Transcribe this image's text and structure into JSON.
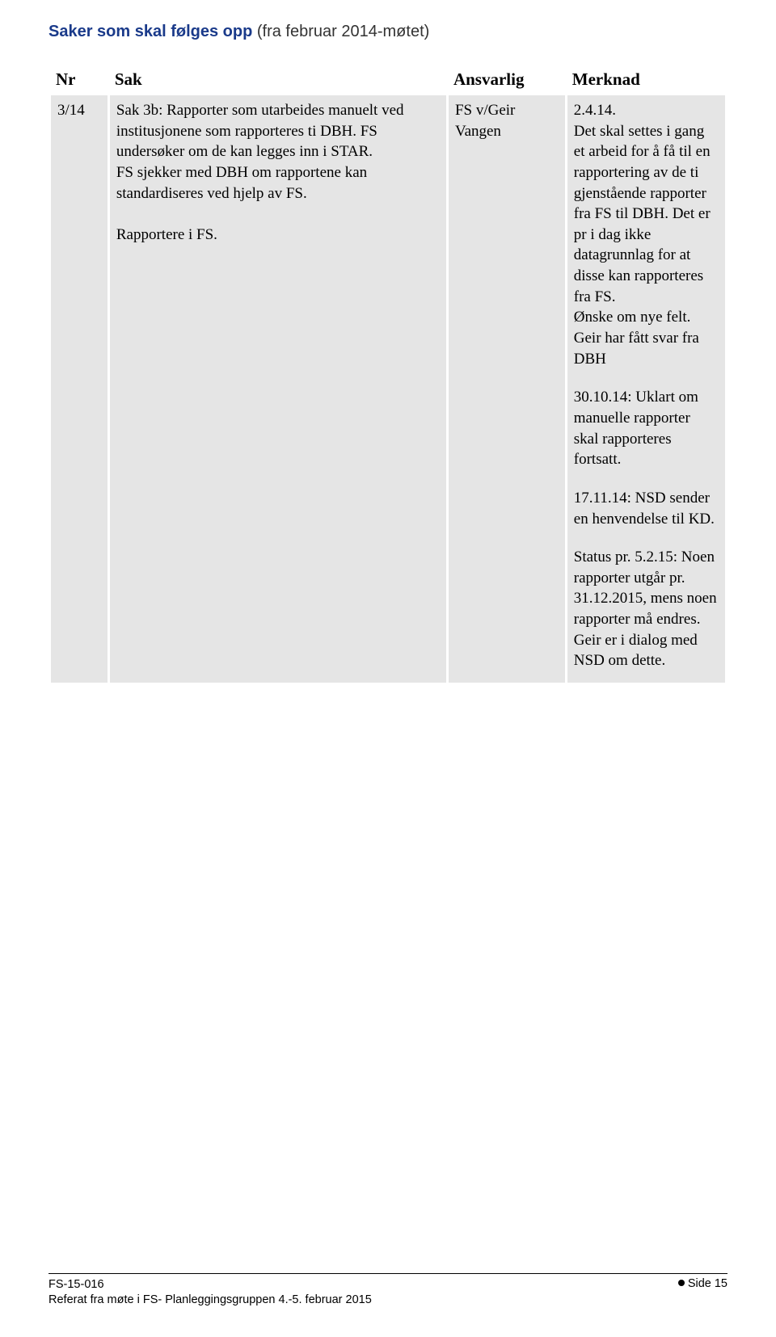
{
  "heading": {
    "main": "Saker som skal følges opp ",
    "sub": "(fra februar 2014-møtet)"
  },
  "table": {
    "headers": {
      "nr": "Nr",
      "sak": "Sak",
      "ansvarlig": "Ansvarlig",
      "merknad": "Merknad"
    },
    "row": {
      "nr": "3/14",
      "sak": "Sak 3b: Rapporter som utarbeides manuelt ved institusjonene som rapporteres ti DBH. FS undersøker om de kan legges inn i STAR.\nFS sjekker med DBH om rapportene kan standardiseres ved hjelp av FS.\n\nRapportere i FS.",
      "ansvarlig": "FS v/Geir Vangen",
      "merknad": [
        "2.4.14.\nDet skal settes i gang et arbeid for å få til en rapportering av de ti gjenstående rapporter fra FS til DBH. Det er pr i dag ikke datagrunnlag for at disse kan rapporteres fra FS.\nØnske om nye felt.\nGeir har fått svar fra DBH",
        "30.10.14: Uklart om manuelle rapporter skal rapporteres fortsatt.",
        "17.11.14: NSD sender en henvendelse til KD.",
        "Status pr. 5.2.15: Noen rapporter utgår pr. 31.12.2015, mens noen rapporter må endres.\nGeir er i dialog med NSD om dette."
      ]
    }
  },
  "footer": {
    "doc_id": "FS-15-016",
    "line2": "Referat fra møte i FS- Planleggingsgruppen 4.-5. februar 2015",
    "page": "Side 15"
  }
}
